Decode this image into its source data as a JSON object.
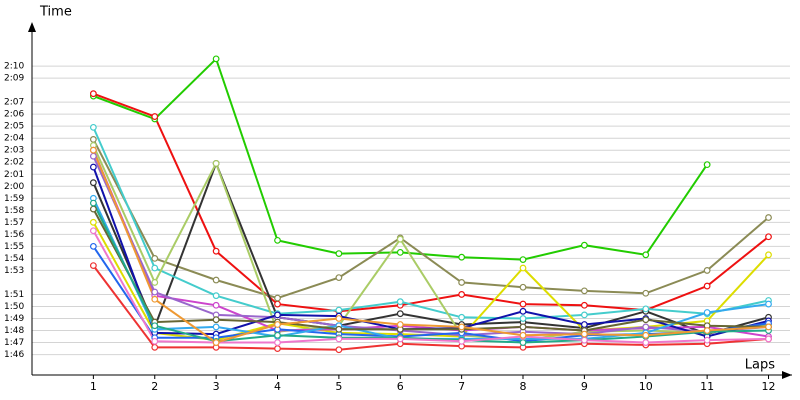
{
  "chart_data": {
    "type": "line",
    "y_label": "Time",
    "x_label": "Laps",
    "x": [
      1,
      2,
      3,
      4,
      5,
      6,
      7,
      8,
      9,
      10,
      11,
      12
    ],
    "xlim": [
      0,
      12.35
    ],
    "xticks": [
      1,
      2,
      3,
      4,
      5,
      6,
      7,
      8,
      9,
      10,
      11,
      12
    ],
    "ylim": [
      104.3,
      133
    ],
    "yticks": [
      {
        "value": 106,
        "label": "1:46"
      },
      {
        "value": 107,
        "label": "1:47"
      },
      {
        "value": 108,
        "label": "1:48"
      },
      {
        "value": 109,
        "label": "1:49"
      },
      {
        "value": 110,
        "label": "1:50"
      },
      {
        "value": 111,
        "label": "1:51"
      },
      {
        "value": 113,
        "label": "1:53"
      },
      {
        "value": 114,
        "label": "1:54"
      },
      {
        "value": 115,
        "label": "1:55"
      },
      {
        "value": 116,
        "label": "1:56"
      },
      {
        "value": 117,
        "label": "1:57"
      },
      {
        "value": 118,
        "label": "1:58"
      },
      {
        "value": 119,
        "label": "1:59"
      },
      {
        "value": 120,
        "label": "2:00"
      },
      {
        "value": 121,
        "label": "2:01"
      },
      {
        "value": 122,
        "label": "2:02"
      },
      {
        "value": 123,
        "label": "2:03"
      },
      {
        "value": 124,
        "label": "2:04"
      },
      {
        "value": 125,
        "label": "2:05"
      },
      {
        "value": 126,
        "label": "2:06"
      },
      {
        "value": 127,
        "label": "2:07"
      },
      {
        "value": 129,
        "label": "2:09"
      },
      {
        "value": 130,
        "label": "2:10"
      }
    ],
    "grid": true,
    "series": [
      {
        "color": "#22cc00",
        "values": [
          127.5,
          125.6,
          130.6,
          115.5,
          114.4,
          114.5,
          114.1,
          113.9,
          115.1,
          114.3,
          121.8,
          null
        ]
      },
      {
        "color": "#ee1111",
        "values": [
          127.7,
          125.8,
          114.6,
          110.2,
          109.6,
          110.1,
          111.0,
          110.2,
          110.1,
          109.7,
          111.7,
          115.8
        ]
      },
      {
        "color": "#8b8b55",
        "values": [
          123.9,
          114.0,
          112.2,
          110.7,
          112.4,
          115.7,
          112.0,
          111.6,
          111.3,
          111.1,
          113.0,
          117.4
        ]
      },
      {
        "color": "#333333",
        "values": [
          120.3,
          108.3,
          121.9,
          109.1,
          108.4,
          109.4,
          108.5,
          108.7,
          108.2,
          109.6,
          107.7,
          109.1
        ]
      },
      {
        "color": "#44cccc",
        "values": [
          124.9,
          113.2,
          110.9,
          109.4,
          109.7,
          110.4,
          109.1,
          109.0,
          109.3,
          109.8,
          109.4,
          110.5
        ]
      },
      {
        "color": "#dddd00",
        "values": [
          117.0,
          107.8,
          107.2,
          108.6,
          107.8,
          107.7,
          107.5,
          113.2,
          108.0,
          108.3,
          108.8,
          114.3
        ]
      },
      {
        "color": "#aacc66",
        "values": [
          123.4,
          112.0,
          121.9,
          107.9,
          108.4,
          115.6,
          107.6,
          107.2,
          107.9,
          108.0,
          107.8,
          108.5
        ]
      },
      {
        "color": "#cc44cc",
        "values": [
          123.0,
          110.9,
          110.1,
          108.0,
          108.1,
          108.4,
          108.0,
          108.3,
          108.0,
          108.2,
          108.3,
          107.5
        ]
      },
      {
        "color": "#9966cc",
        "values": [
          122.5,
          111.2,
          109.3,
          109.1,
          108.4,
          108.0,
          107.6,
          107.9,
          107.7,
          108.3,
          107.9,
          108.3
        ]
      },
      {
        "color": "#1111aa",
        "values": [
          121.6,
          107.8,
          107.7,
          109.3,
          109.2,
          108.1,
          108.2,
          109.6,
          108.5,
          109.0,
          107.5,
          108.8
        ]
      },
      {
        "color": "#2266ee",
        "values": [
          115.0,
          107.4,
          107.4,
          108.1,
          107.7,
          107.5,
          107.8,
          107.1,
          107.6,
          107.7,
          107.9,
          108.6
        ]
      },
      {
        "color": "#33aaee",
        "values": [
          119.0,
          108.1,
          108.3,
          107.5,
          108.4,
          107.3,
          107.3,
          107.3,
          107.3,
          107.8,
          109.5,
          110.2
        ]
      },
      {
        "color": "#ee3333",
        "values": [
          113.4,
          106.6,
          106.6,
          106.5,
          106.4,
          106.9,
          106.7,
          106.6,
          106.9,
          106.8,
          106.9,
          107.3
        ]
      },
      {
        "color": "#666633",
        "values": [
          118.1,
          108.7,
          108.9,
          108.7,
          108.1,
          108.1,
          108.1,
          108.3,
          108.0,
          108.9,
          108.4,
          108.3
        ]
      },
      {
        "color": "#22aa88",
        "values": [
          118.6,
          108.4,
          107.1,
          107.6,
          107.4,
          107.4,
          107.2,
          107.0,
          107.2,
          107.5,
          107.9,
          108.0
        ]
      },
      {
        "color": "#ee77cc",
        "values": [
          116.3,
          107.1,
          107.0,
          107.0,
          107.3,
          107.3,
          107.1,
          107.5,
          107.2,
          107.0,
          107.2,
          107.3
        ]
      },
      {
        "color": "#ee9933",
        "values": [
          123.0,
          110.6,
          107.0,
          108.5,
          109.0,
          108.5,
          108.3,
          107.6,
          107.7,
          107.6,
          108.0,
          108.3
        ]
      }
    ]
  }
}
